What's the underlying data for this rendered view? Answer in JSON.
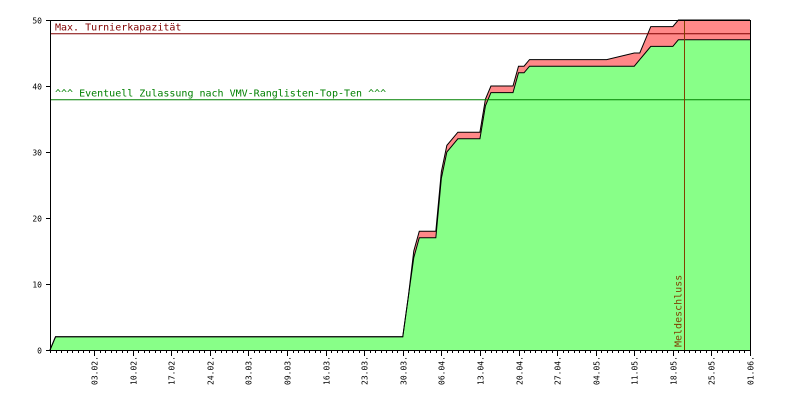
{
  "chart_data": {
    "type": "area",
    "y_ticks": [
      0,
      10,
      20,
      30,
      40,
      50
    ],
    "ylim": [
      0,
      50
    ],
    "x_tick_labels": [
      "03.02.",
      "10.02.",
      "17.02.",
      "24.02.",
      "03.03.",
      "09.03.",
      "16.03.",
      "23.03.",
      "30.03.",
      "06.04.",
      "13.04.",
      "20.04.",
      "27.04.",
      "04.05.",
      "11.05.",
      "18.05.",
      "25.05.",
      "01.06."
    ],
    "x_tick_positions": [
      5,
      12,
      19,
      26,
      33,
      40,
      47,
      54,
      61,
      68,
      75,
      82,
      89,
      96,
      103,
      110,
      117,
      124
    ],
    "xlim": [
      -3,
      124
    ],
    "series": [
      {
        "color": "#88ff88",
        "x": [
          -3,
          -2,
          60,
          61,
          62,
          63,
          64,
          67,
          68,
          69,
          70,
          71,
          75,
          76,
          77,
          80,
          81,
          82,
          83,
          84,
          89,
          90,
          98,
          103,
          104,
          105,
          106,
          110,
          111,
          115,
          124
        ],
        "values": [
          0,
          2,
          2,
          2,
          8,
          14,
          17,
          17,
          26,
          30,
          31,
          32,
          32,
          37,
          39,
          39,
          39,
          42,
          42,
          43,
          43,
          43,
          43,
          43,
          44,
          45,
          46,
          46,
          47,
          47,
          47
        ]
      },
      {
        "color": "#ff8888",
        "x": [
          -3,
          -2,
          60,
          61,
          62,
          63,
          64,
          67,
          68,
          69,
          70,
          71,
          75,
          76,
          77,
          80,
          81,
          82,
          83,
          84,
          89,
          90,
          98,
          103,
          104,
          105,
          106,
          110,
          111,
          115,
          124
        ],
        "values": [
          0,
          2,
          2,
          2,
          8,
          15,
          18,
          18,
          27,
          31,
          32,
          33,
          33,
          38,
          40,
          40,
          40,
          43,
          43,
          44,
          44,
          44,
          44,
          45,
          45,
          47,
          49,
          49,
          50,
          50,
          50
        ]
      }
    ],
    "reference_lines": [
      {
        "y": 48,
        "label": "Max. Turnierkapazität",
        "color": "#800000"
      },
      {
        "y": 38,
        "label": "^^^ Eventuell Zulassung nach VMV-Ranglisten-Top-Ten ^^^",
        "color": "#008000"
      }
    ],
    "vertical_marker": {
      "x": 112,
      "label": "Meldeschluss",
      "color": "#804000"
    }
  }
}
